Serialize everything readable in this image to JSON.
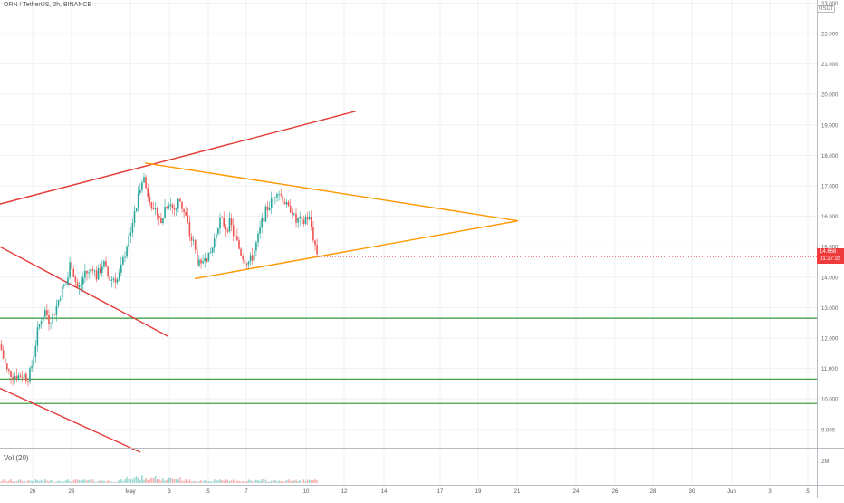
{
  "chart_title": "ORN / TetherUS, 2h, BINANCE",
  "unit": "USDT",
  "volume_label": "Vol (20)",
  "last_price": "14.668",
  "countdown": "01:27:32",
  "colors": {
    "up": "#26a69a",
    "down": "#ef5350",
    "trendline": "#e53935",
    "triangle": "#ff9800",
    "support": "#43a047",
    "price_tag": "#ef3b3b"
  },
  "chart_data": {
    "type": "candlestick",
    "y_scale": "linear",
    "ylim": [
      8.4,
      23.1
    ],
    "y_ticks": [
      "23.000",
      "22.000",
      "21.000",
      "20.000",
      "19.000",
      "18.000",
      "17.000",
      "16.000",
      "15.000",
      "14.000",
      "13.000",
      "12.000",
      "11.000",
      "10.000",
      "9.000"
    ],
    "y_tick_values": [
      23,
      22,
      21,
      20,
      19,
      18,
      17,
      16,
      15,
      14,
      13,
      12,
      11,
      10,
      9
    ],
    "x_ticks": [
      "26",
      "28",
      "May",
      "3",
      "5",
      "7",
      "10",
      "12",
      "14",
      "17",
      "19",
      "21",
      "24",
      "26",
      "28",
      "30",
      "Jun",
      "3",
      "5"
    ],
    "volume_axis_tick": "2M",
    "close_path": [
      [
        0,
        11.8
      ],
      [
        4,
        11.3
      ],
      [
        8,
        10.9
      ],
      [
        14,
        10.8
      ],
      [
        20,
        10.75
      ],
      [
        26,
        10.8
      ],
      [
        30,
        10.7
      ],
      [
        34,
        10.9
      ],
      [
        38,
        11.6
      ],
      [
        42,
        12.3
      ],
      [
        46,
        12.7
      ],
      [
        50,
        12.9
      ],
      [
        54,
        12.6
      ],
      [
        58,
        12.7
      ],
      [
        62,
        13.0
      ],
      [
        66,
        13.4
      ],
      [
        70,
        13.7
      ],
      [
        74,
        13.8
      ],
      [
        78,
        14.6
      ],
      [
        82,
        14.0
      ],
      [
        86,
        13.6
      ],
      [
        90,
        13.8
      ],
      [
        94,
        14.2
      ],
      [
        98,
        14.1
      ],
      [
        102,
        14.4
      ],
      [
        106,
        14.0
      ],
      [
        110,
        14.2
      ],
      [
        114,
        14.5
      ],
      [
        118,
        14.1
      ],
      [
        122,
        13.9
      ],
      [
        126,
        14.0
      ],
      [
        130,
        13.9
      ],
      [
        134,
        14.3
      ],
      [
        138,
        14.8
      ],
      [
        142,
        15.3
      ],
      [
        146,
        15.8
      ],
      [
        150,
        16.2
      ],
      [
        154,
        16.9
      ],
      [
        158,
        17.4
      ],
      [
        162,
        16.8
      ],
      [
        166,
        16.6
      ],
      [
        170,
        16.0
      ],
      [
        174,
        16.2
      ],
      [
        178,
        15.7
      ],
      [
        182,
        16.3
      ],
      [
        186,
        16.5
      ],
      [
        190,
        16.3
      ],
      [
        194,
        16.2
      ],
      [
        198,
        16.6
      ],
      [
        202,
        16.2
      ],
      [
        206,
        15.9
      ],
      [
        210,
        15.3
      ],
      [
        214,
        15.1
      ],
      [
        218,
        14.5
      ],
      [
        222,
        14.3
      ],
      [
        226,
        14.8
      ],
      [
        230,
        14.6
      ],
      [
        234,
        14.9
      ],
      [
        238,
        15.4
      ],
      [
        242,
        15.9
      ],
      [
        246,
        15.8
      ],
      [
        250,
        15.6
      ],
      [
        254,
        15.8
      ],
      [
        258,
        15.4
      ],
      [
        262,
        15.1
      ],
      [
        266,
        14.8
      ],
      [
        270,
        14.6
      ],
      [
        274,
        14.5
      ],
      [
        278,
        14.6
      ],
      [
        282,
        15.0
      ],
      [
        286,
        15.4
      ],
      [
        290,
        15.9
      ],
      [
        294,
        16.2
      ],
      [
        298,
        16.4
      ],
      [
        302,
        16.6
      ],
      [
        306,
        16.9
      ],
      [
        310,
        16.7
      ],
      [
        314,
        16.5
      ],
      [
        318,
        16.2
      ],
      [
        322,
        16.3
      ],
      [
        326,
        15.8
      ],
      [
        330,
        15.9
      ],
      [
        334,
        15.7
      ],
      [
        338,
        16.0
      ],
      [
        342,
        15.9
      ],
      [
        346,
        15.3
      ],
      [
        350,
        14.8
      ],
      [
        352,
        14.67
      ]
    ],
    "trendlines": [
      {
        "name": "rising-channel-top",
        "color": "trendline",
        "points": [
          [
            0,
            16.4
          ],
          [
            393,
            19.45
          ]
        ]
      },
      {
        "name": "falling-channel-upper",
        "color": "trendline",
        "points": [
          [
            0,
            15.0
          ],
          [
            186,
            12.05
          ]
        ]
      },
      {
        "name": "falling-channel-lower",
        "color": "trendline",
        "points": [
          [
            0,
            10.35
          ],
          [
            155,
            8.25
          ]
        ]
      },
      {
        "name": "triangle-upper",
        "color": "triangle",
        "points": [
          [
            160,
            17.75
          ],
          [
            572,
            15.85
          ]
        ]
      },
      {
        "name": "triangle-lower",
        "color": "triangle",
        "points": [
          [
            215,
            13.95
          ],
          [
            572,
            15.85
          ]
        ]
      }
    ],
    "horizontal_levels": [
      12.65,
      10.65,
      9.85
    ],
    "volume_range": [
      0,
      2000000
    ]
  }
}
